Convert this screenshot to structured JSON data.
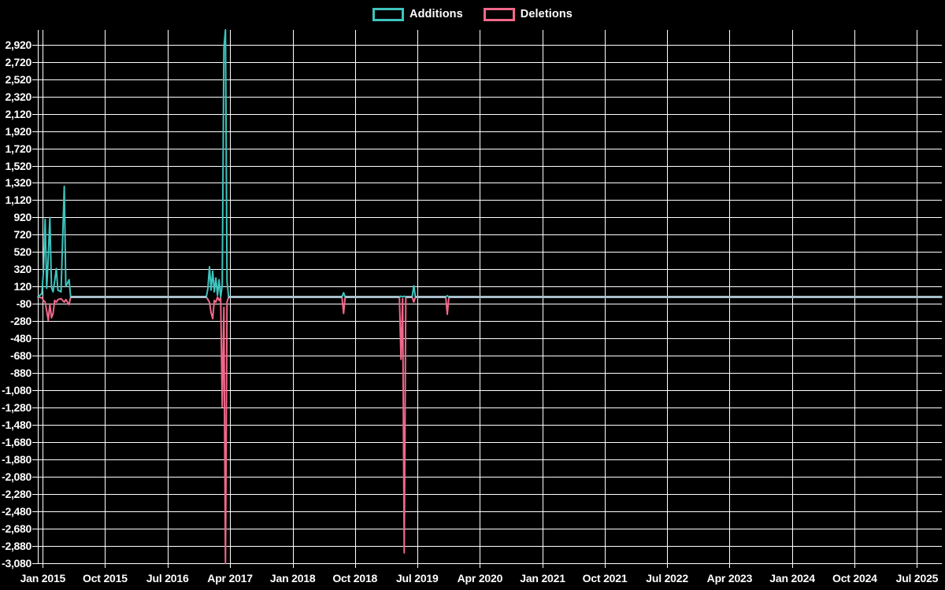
{
  "legend": {
    "items": [
      {
        "label": "Additions",
        "color": "#3ec4be"
      },
      {
        "label": "Deletions",
        "color": "#f0688a"
      }
    ]
  },
  "chart_data": {
    "type": "line",
    "title": "",
    "xlabel": "",
    "ylabel": "",
    "grid": true,
    "legend_position": "top-center",
    "background_color": "#000000",
    "grid_color": "#ffffff",
    "text_color": "#ffffff",
    "zero_overlap_color": "#a9c0ca",
    "y_axis": {
      "min": -3080,
      "max": 3090,
      "tick_min": -3080,
      "tick_max": 2920,
      "tick_step": 200
    },
    "x_axis": {
      "range_start": "2014-12-10",
      "range_end": "2025-10-18",
      "ticks": [
        {
          "label": "Jan 2015",
          "date": "2015-01-01"
        },
        {
          "label": "Oct 2015",
          "date": "2015-10-01"
        },
        {
          "label": "Jul 2016",
          "date": "2016-07-01"
        },
        {
          "label": "Apr 2017",
          "date": "2017-04-01"
        },
        {
          "label": "Jan 2018",
          "date": "2018-01-01"
        },
        {
          "label": "Oct 2018",
          "date": "2018-10-01"
        },
        {
          "label": "Jul 2019",
          "date": "2019-07-01"
        },
        {
          "label": "Apr 2020",
          "date": "2020-04-01"
        },
        {
          "label": "Jan 2021",
          "date": "2021-01-01"
        },
        {
          "label": "Oct 2021",
          "date": "2021-10-01"
        },
        {
          "label": "Jul 2022",
          "date": "2022-07-01"
        },
        {
          "label": "Apr 2023",
          "date": "2023-04-01"
        },
        {
          "label": "Jan 2024",
          "date": "2024-01-01"
        },
        {
          "label": "Oct 2024",
          "date": "2024-10-01"
        },
        {
          "label": "Jul 2025",
          "date": "2025-07-01"
        }
      ]
    },
    "series": [
      {
        "name": "Additions",
        "color": "#3ec4be",
        "field": "additions"
      },
      {
        "name": "Deletions",
        "color": "#f0688a",
        "field": "deletions"
      }
    ],
    "points": [
      {
        "date": "2014-12-10",
        "additions": 0,
        "deletions": 0
      },
      {
        "date": "2014-12-28",
        "additions": 40,
        "deletions": -10
      },
      {
        "date": "2015-01-04",
        "additions": 300,
        "deletions": -40
      },
      {
        "date": "2015-01-11",
        "additions": 900,
        "deletions": -60
      },
      {
        "date": "2015-01-18",
        "additions": 100,
        "deletions": -160
      },
      {
        "date": "2015-01-25",
        "additions": 460,
        "deletions": -270
      },
      {
        "date": "2015-02-01",
        "additions": 920,
        "deletions": -80
      },
      {
        "date": "2015-02-08",
        "additions": 110,
        "deletions": -240
      },
      {
        "date": "2015-02-15",
        "additions": 60,
        "deletions": -190
      },
      {
        "date": "2015-02-22",
        "additions": 180,
        "deletions": -40
      },
      {
        "date": "2015-03-01",
        "additions": 330,
        "deletions": -60
      },
      {
        "date": "2015-03-08",
        "additions": 80,
        "deletions": -30
      },
      {
        "date": "2015-03-22",
        "additions": 60,
        "deletions": -20
      },
      {
        "date": "2015-04-05",
        "additions": 1280,
        "deletions": -60
      },
      {
        "date": "2015-04-12",
        "additions": 120,
        "deletions": -30
      },
      {
        "date": "2015-04-26",
        "additions": 200,
        "deletions": -90
      },
      {
        "date": "2015-05-03",
        "additions": 0,
        "deletions": 0
      },
      {
        "date": "2016-12-18",
        "additions": 0,
        "deletions": 0
      },
      {
        "date": "2016-12-25",
        "additions": 100,
        "deletions": -30
      },
      {
        "date": "2017-01-01",
        "additions": 350,
        "deletions": -60
      },
      {
        "date": "2017-01-08",
        "additions": 80,
        "deletions": -180
      },
      {
        "date": "2017-01-15",
        "additions": 300,
        "deletions": -250
      },
      {
        "date": "2017-01-22",
        "additions": 60,
        "deletions": -40
      },
      {
        "date": "2017-01-29",
        "additions": 220,
        "deletions": -60
      },
      {
        "date": "2017-02-05",
        "additions": 20,
        "deletions": 0
      },
      {
        "date": "2017-02-12",
        "additions": 200,
        "deletions": -40
      },
      {
        "date": "2017-02-19",
        "additions": 0,
        "deletions": -10
      },
      {
        "date": "2017-02-26",
        "additions": 140,
        "deletions": -1270
      },
      {
        "date": "2017-03-05",
        "additions": 2880,
        "deletions": -120
      },
      {
        "date": "2017-03-12",
        "additions": 3090,
        "deletions": -3080
      },
      {
        "date": "2017-03-19",
        "additions": 180,
        "deletions": -60
      },
      {
        "date": "2017-03-26",
        "additions": 0,
        "deletions": 0
      },
      {
        "date": "2018-08-05",
        "additions": 0,
        "deletions": 0
      },
      {
        "date": "2018-08-12",
        "additions": 50,
        "deletions": -190
      },
      {
        "date": "2018-08-19",
        "additions": 0,
        "deletions": 0
      },
      {
        "date": "2019-04-14",
        "additions": 0,
        "deletions": 0
      },
      {
        "date": "2019-04-21",
        "additions": 10,
        "deletions": -720
      },
      {
        "date": "2019-04-28",
        "additions": 0,
        "deletions": -20
      },
      {
        "date": "2019-05-05",
        "additions": 10,
        "deletions": -2960
      },
      {
        "date": "2019-05-12",
        "additions": 0,
        "deletions": 0
      },
      {
        "date": "2019-06-09",
        "additions": 0,
        "deletions": 0
      },
      {
        "date": "2019-06-16",
        "additions": 130,
        "deletions": -60
      },
      {
        "date": "2019-06-23",
        "additions": 0,
        "deletions": 0
      },
      {
        "date": "2019-11-03",
        "additions": 0,
        "deletions": 0
      },
      {
        "date": "2019-11-10",
        "additions": 15,
        "deletions": -200
      },
      {
        "date": "2019-11-17",
        "additions": 0,
        "deletions": 0
      },
      {
        "date": "2025-10-18",
        "additions": 0,
        "deletions": 0
      }
    ]
  }
}
